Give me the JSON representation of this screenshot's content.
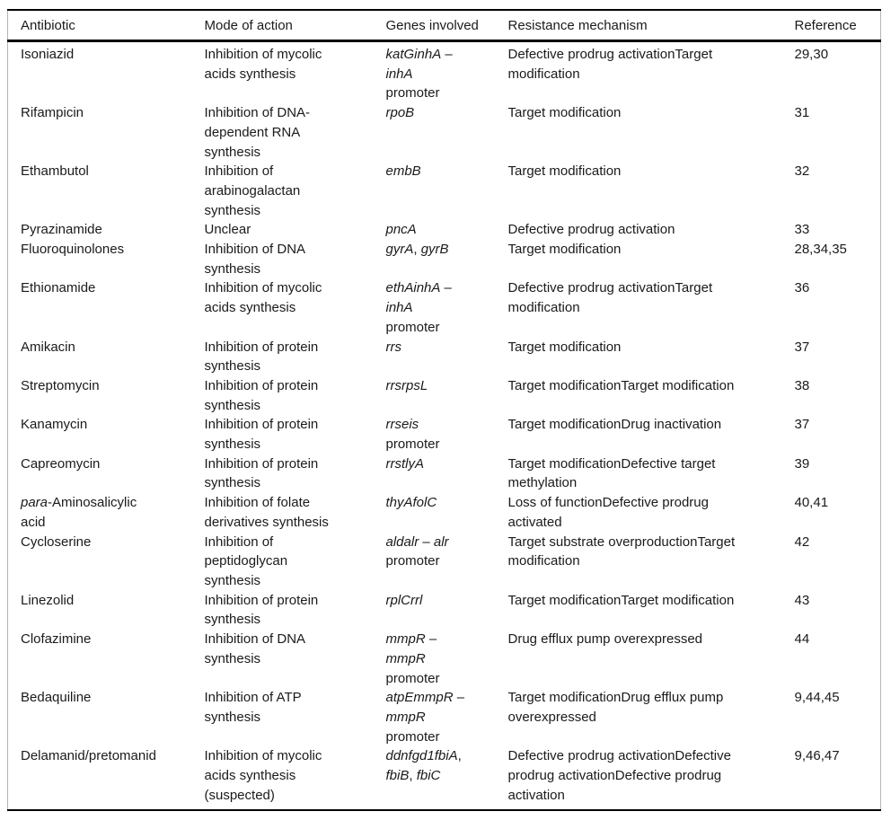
{
  "table": {
    "name": "antibiotic-resistance-table",
    "columns": [
      {
        "label": "Antibiotic"
      },
      {
        "label": "Mode of action"
      },
      {
        "label": "Genes involved"
      },
      {
        "label": "Resistance mechanism"
      },
      {
        "label": "Reference"
      }
    ],
    "rows": [
      {
        "antibiotic": "Isoniazid",
        "mode": "Inhibition of mycolic\nacids synthesis",
        "genes": "*katGinhA* –\n*inhA*\npromoter",
        "resistance": "Defective prodrug activationTarget\nmodification",
        "reference": "29,30"
      },
      {
        "antibiotic": "Rifampicin",
        "mode": "Inhibition of DNA-\ndependent RNA\nsynthesis",
        "genes": "*rpoB*",
        "resistance": "Target modification",
        "reference": "31"
      },
      {
        "antibiotic": "Ethambutol",
        "mode": "Inhibition of\narabinogalactan\nsynthesis",
        "genes": "*embB*",
        "resistance": "Target modification",
        "reference": "32"
      },
      {
        "antibiotic": "Pyrazinamide",
        "mode": "Unclear",
        "genes": "*pncA*",
        "resistance": "Defective prodrug activation",
        "reference": "33"
      },
      {
        "antibiotic": "Fluoroquinolones",
        "mode": "Inhibition of DNA\nsynthesis",
        "genes": "*gyrA*, *gyrB*",
        "resistance": "Target modification",
        "reference": "28,34,35"
      },
      {
        "antibiotic": "Ethionamide",
        "mode": "Inhibition of mycolic\nacids synthesis",
        "genes": "*ethAinhA* –\n*inhA*\npromoter",
        "resistance": "Defective prodrug activationTarget\nmodification",
        "reference": "36"
      },
      {
        "antibiotic": "Amikacin",
        "mode": "Inhibition of protein\nsynthesis",
        "genes": "*rrs*",
        "resistance": "Target modification",
        "reference": "37"
      },
      {
        "antibiotic": "Streptomycin",
        "mode": "Inhibition of protein\nsynthesis",
        "genes": "*rrsrpsL*",
        "resistance": "Target modificationTarget modification",
        "reference": "38"
      },
      {
        "antibiotic": "Kanamycin",
        "mode": "Inhibition of protein\nsynthesis",
        "genes": "*rrseis*\npromoter",
        "resistance": "Target modificationDrug inactivation",
        "reference": "37"
      },
      {
        "antibiotic": "Capreomycin",
        "mode": "Inhibition of protein\nsynthesis",
        "genes": "*rrstlyA*",
        "resistance": "Target modificationDefective target\nmethylation",
        "reference": "39"
      },
      {
        "antibiotic": "*para*-Aminosalicylic\nacid",
        "mode": "Inhibition of folate\nderivatives synthesis",
        "genes": "*thyAfolC*",
        "resistance": "Loss of functionDefective prodrug\nactivated",
        "reference": "40,41"
      },
      {
        "antibiotic": "Cycloserine",
        "mode": "Inhibition of\npeptidoglycan\nsynthesis",
        "genes": "*aldalr* – *alr*\npromoter",
        "resistance": "Target substrate overproductionTarget\nmodification",
        "reference": "42"
      },
      {
        "antibiotic": "Linezolid",
        "mode": "Inhibition of protein\nsynthesis",
        "genes": "*rplCrrl*",
        "resistance": "Target modificationTarget modification",
        "reference": "43"
      },
      {
        "antibiotic": "Clofazimine",
        "mode": "Inhibition of DNA\nsynthesis",
        "genes": "*mmpR* –\n*mmpR*\npromoter",
        "resistance": "Drug efflux pump overexpressed",
        "reference": "44"
      },
      {
        "antibiotic": "Bedaquiline",
        "mode": "Inhibition of ATP\nsynthesis",
        "genes": "*atpEmmpR* –\n*mmpR*\npromoter",
        "resistance": "Target modificationDrug efflux pump\noverexpressed",
        "reference": "9,44,45"
      },
      {
        "antibiotic": "Delamanid/pretomanid",
        "mode": "Inhibition of mycolic\nacids synthesis\n(suspected)",
        "genes": "*ddnfgd1fbiA*,\n*fbiB*, *fbiC*",
        "resistance": "Defective prodrug activationDefective\nprodrug activationDefective prodrug\nactivation",
        "reference": "9,46,47"
      }
    ]
  }
}
